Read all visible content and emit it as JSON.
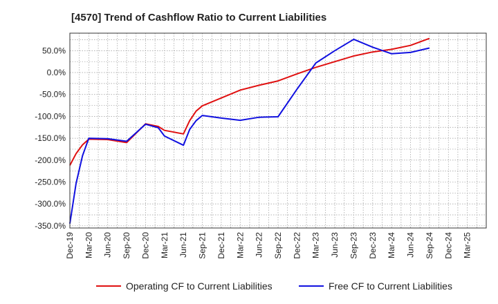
{
  "chart_data": {
    "type": "line",
    "title": "[4570]  Trend of Cashflow Ratio to Current Liabilities",
    "xlabel": "",
    "ylabel": "",
    "x_ticks": [
      "Dec-19",
      "Mar-20",
      "Jun-20",
      "Sep-20",
      "Dec-20",
      "Mar-21",
      "Jun-21",
      "Sep-21",
      "Dec-21",
      "Mar-22",
      "Jun-22",
      "Sep-22",
      "Dec-22",
      "Mar-23",
      "Jun-23",
      "Sep-23",
      "Dec-23",
      "Mar-24",
      "Jun-24",
      "Sep-24",
      "Dec-24",
      "Mar-25"
    ],
    "y_ticks": [
      "50.0%",
      "0.0%",
      "-50.0%",
      "-100.0%",
      "-150.0%",
      "-200.0%",
      "-250.0%",
      "-300.0%",
      "-350.0%"
    ],
    "y_tick_values": [
      50,
      0,
      -50,
      -100,
      -150,
      -200,
      -250,
      -300,
      -350
    ],
    "ylim": [
      -355,
      90
    ],
    "grid": true,
    "legend_position": "bottom",
    "series": [
      {
        "name": "Operating CF to Current Liabilities",
        "color": "#e01010",
        "points": [
          [
            0,
            -212
          ],
          [
            0.33,
            -185
          ],
          [
            0.67,
            -165
          ],
          [
            1,
            -152
          ],
          [
            2,
            -153
          ],
          [
            3,
            -160
          ],
          [
            4,
            -117
          ],
          [
            4.67,
            -123
          ],
          [
            5,
            -132
          ],
          [
            6,
            -140
          ],
          [
            6.33,
            -110
          ],
          [
            6.67,
            -88
          ],
          [
            7,
            -76
          ],
          [
            8,
            -58
          ],
          [
            9,
            -40
          ],
          [
            10,
            -29
          ],
          [
            11,
            -19
          ],
          [
            12,
            -3
          ],
          [
            13,
            12
          ],
          [
            14,
            25
          ],
          [
            15,
            38
          ],
          [
            16,
            47
          ],
          [
            17,
            53
          ],
          [
            18,
            62
          ],
          [
            19,
            78
          ]
        ]
      },
      {
        "name": "Free CF to Current Liabilities",
        "color": "#1010e0",
        "points": [
          [
            0,
            -345
          ],
          [
            0.33,
            -253
          ],
          [
            0.67,
            -190
          ],
          [
            1,
            -150
          ],
          [
            2,
            -151
          ],
          [
            3,
            -157
          ],
          [
            4,
            -118
          ],
          [
            4.67,
            -126
          ],
          [
            5,
            -145
          ],
          [
            6,
            -166
          ],
          [
            6.33,
            -130
          ],
          [
            6.67,
            -110
          ],
          [
            7,
            -98
          ],
          [
            8,
            -104
          ],
          [
            9,
            -109
          ],
          [
            10,
            -102
          ],
          [
            11,
            -101
          ],
          [
            12,
            -38
          ],
          [
            13,
            22
          ],
          [
            14,
            50
          ],
          [
            15,
            76
          ],
          [
            16,
            58
          ],
          [
            17,
            43
          ],
          [
            18,
            46
          ],
          [
            19,
            56
          ]
        ]
      }
    ]
  }
}
